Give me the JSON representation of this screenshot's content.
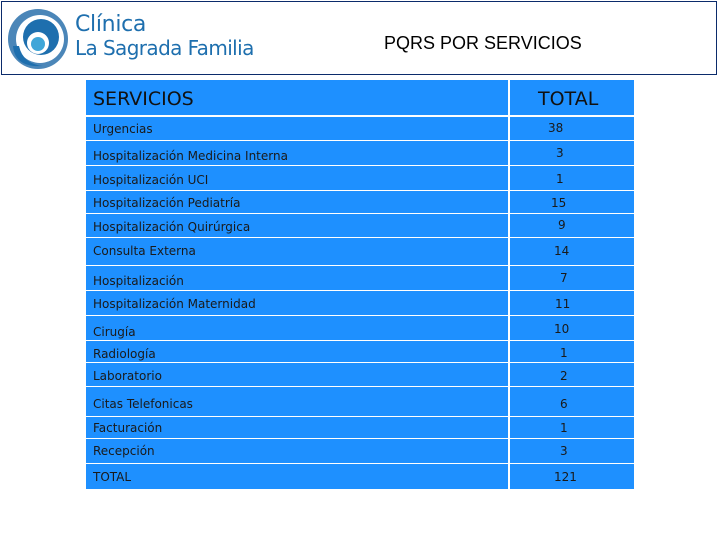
{
  "logo": {
    "line1": "Clínica",
    "line2": "La Sagrada Familia"
  },
  "title": "PQRS POR SERVICIOS",
  "colors": {
    "table_bg": "#1e90ff",
    "brand_blue": "#1e6fae",
    "border": "#0b2b6b"
  },
  "table": {
    "headers": {
      "service": "SERVICIOS",
      "total": "TOTAL"
    },
    "rows": [
      {
        "service": "Urgencias",
        "total": "38"
      },
      {
        "service": "Hospitalización Medicina Interna",
        "total": "3"
      },
      {
        "service": "Hospitalización UCI",
        "total": "1"
      },
      {
        "service": "Hospitalización Pediatría",
        "total": "15"
      },
      {
        "service": "Hospitalización Quirúrgica",
        "total": "9"
      },
      {
        "service": "Consulta Externa",
        "total": "14"
      },
      {
        "service": "Hospitalización",
        "total": "7"
      },
      {
        "service": "Hospitalización Maternidad",
        "total": "11"
      },
      {
        "service": "Cirugía",
        "total": "10"
      },
      {
        "service": "Radiología",
        "total": "1"
      },
      {
        "service": "Laboratorio",
        "total": "2"
      },
      {
        "service": "Citas Telefonicas",
        "total": "6"
      },
      {
        "service": "Facturación",
        "total": "1"
      },
      {
        "service": "Recepción",
        "total": "3"
      },
      {
        "service": "TOTAL",
        "total": "121"
      }
    ]
  }
}
